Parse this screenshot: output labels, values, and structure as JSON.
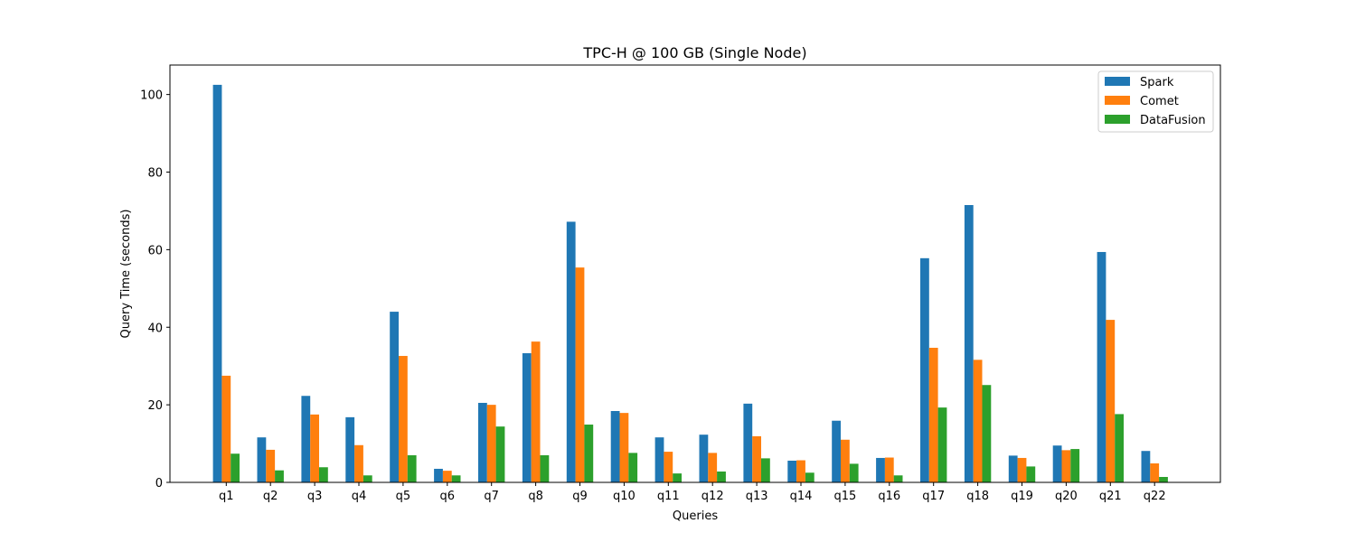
{
  "chart_data": {
    "type": "bar",
    "title": "TPC-H @ 100 GB (Single Node)",
    "xlabel": "Queries",
    "ylabel": "Query Time (seconds)",
    "ylim": [
      0,
      107.6
    ],
    "yticks": [
      0,
      20,
      40,
      60,
      80,
      100
    ],
    "grid": false,
    "legend": "top-right",
    "categories": [
      "q1",
      "q2",
      "q3",
      "q4",
      "q5",
      "q6",
      "q7",
      "q8",
      "q9",
      "q10",
      "q11",
      "q12",
      "q13",
      "q14",
      "q15",
      "q16",
      "q17",
      "q18",
      "q19",
      "q20",
      "q21",
      "q22"
    ],
    "series": [
      {
        "name": "Spark",
        "color": "#1f77b4",
        "values": [
          102.5,
          11.6,
          22.3,
          16.8,
          44.0,
          3.5,
          20.5,
          33.3,
          67.2,
          18.4,
          11.6,
          12.3,
          20.3,
          5.6,
          15.9,
          6.3,
          57.8,
          71.5,
          6.9,
          9.5,
          59.4,
          8.1
        ]
      },
      {
        "name": "Comet",
        "color": "#ff7f0e",
        "values": [
          27.5,
          8.4,
          17.5,
          9.6,
          32.6,
          3.0,
          20.0,
          36.3,
          55.4,
          17.9,
          7.9,
          7.6,
          11.9,
          5.7,
          11.0,
          6.4,
          34.7,
          31.6,
          6.3,
          8.3,
          41.9,
          4.9
        ]
      },
      {
        "name": "DataFusion",
        "color": "#2ca02c",
        "values": [
          7.4,
          3.1,
          3.9,
          1.8,
          7.0,
          1.8,
          14.4,
          7.0,
          14.9,
          7.6,
          2.3,
          2.8,
          6.2,
          2.5,
          4.8,
          1.8,
          19.3,
          25.1,
          4.1,
          8.6,
          17.6,
          1.4
        ]
      }
    ]
  }
}
